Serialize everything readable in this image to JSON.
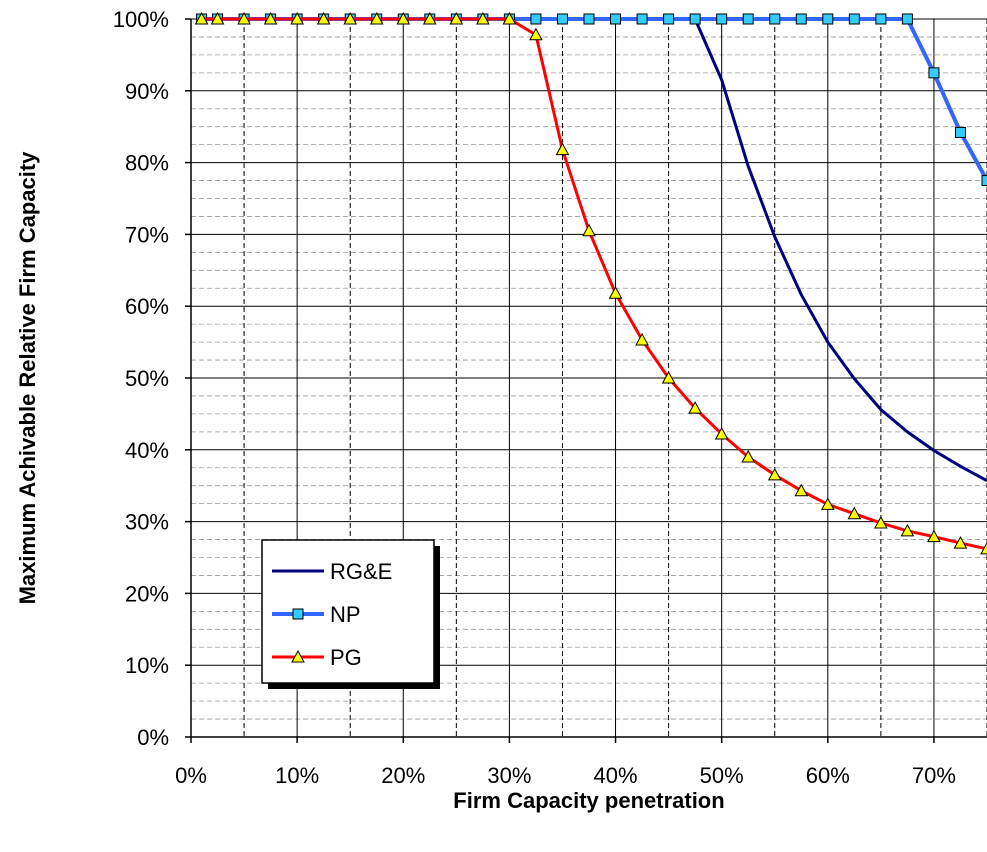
{
  "chart_data": {
    "type": "line",
    "title": "",
    "xlabel": "Firm Capacity penetration",
    "ylabel": "Maximum Achivable Relative Firm Capacity",
    "xlim": [
      0,
      75
    ],
    "ylim": [
      0,
      100
    ],
    "x_ticks": [
      {
        "v": 0,
        "label": "0%"
      },
      {
        "v": 10,
        "label": "10%"
      },
      {
        "v": 20,
        "label": "20%"
      },
      {
        "v": 30,
        "label": "30%"
      },
      {
        "v": 40,
        "label": "40%"
      },
      {
        "v": 50,
        "label": "50%"
      },
      {
        "v": 60,
        "label": "60%"
      },
      {
        "v": 70,
        "label": "70%"
      }
    ],
    "y_ticks": [
      {
        "v": 0,
        "label": "0%"
      },
      {
        "v": 10,
        "label": "10%"
      },
      {
        "v": 20,
        "label": "20%"
      },
      {
        "v": 30,
        "label": "30%"
      },
      {
        "v": 40,
        "label": "40%"
      },
      {
        "v": 50,
        "label": "50%"
      },
      {
        "v": 60,
        "label": "60%"
      },
      {
        "v": 70,
        "label": "70%"
      },
      {
        "v": 80,
        "label": "80%"
      },
      {
        "v": 90,
        "label": "90%"
      },
      {
        "v": 100,
        "label": "100%"
      }
    ],
    "grid": {
      "major": true,
      "minor": true
    },
    "legend_position": "bottom-left",
    "series": [
      {
        "name": "RG&E",
        "color": "#000080",
        "marker": "none",
        "x": [
          1,
          2.5,
          5,
          7.5,
          10,
          12.5,
          15,
          17.5,
          20,
          22.5,
          25,
          27.5,
          30,
          32.5,
          35,
          37.5,
          40,
          42.5,
          45,
          47.5,
          50,
          52.5,
          55,
          57.5,
          60,
          62.5,
          65,
          67.5,
          70,
          72.5,
          75
        ],
        "y": [
          100,
          100,
          100,
          100,
          100,
          100,
          100,
          100,
          100,
          100,
          100,
          100,
          100,
          100,
          100,
          100,
          100,
          100,
          100,
          100,
          91.5,
          79.5,
          69.7,
          61.6,
          55,
          49.9,
          45.6,
          42.5,
          39.9,
          37.7,
          35.7
        ]
      },
      {
        "name": "NP",
        "color": "#3366FF",
        "marker": "square",
        "marker_fill": "#33CCFF",
        "x": [
          1,
          2.5,
          5,
          7.5,
          10,
          12.5,
          15,
          17.5,
          20,
          22.5,
          25,
          27.5,
          30,
          32.5,
          35,
          37.5,
          40,
          42.5,
          45,
          47.5,
          50,
          52.5,
          55,
          57.5,
          60,
          62.5,
          65,
          67.5,
          70,
          72.5,
          75
        ],
        "y": [
          100,
          100,
          100,
          100,
          100,
          100,
          100,
          100,
          100,
          100,
          100,
          100,
          100,
          100,
          100,
          100,
          100,
          100,
          100,
          100,
          100,
          100,
          100,
          100,
          100,
          100,
          100,
          100,
          92.5,
          84.2,
          77.5
        ]
      },
      {
        "name": "PG",
        "color": "#FF0000",
        "marker": "triangle",
        "marker_fill": "#FFFF00",
        "x": [
          1,
          2.5,
          5,
          7.5,
          10,
          12.5,
          15,
          17.5,
          20,
          22.5,
          25,
          27.5,
          30,
          32.5,
          35,
          37.5,
          40,
          42.5,
          45,
          47.5,
          50,
          52.5,
          55,
          57.5,
          60,
          62.5,
          65,
          67.5,
          70,
          72.5,
          75
        ],
        "y": [
          100,
          100,
          100,
          100,
          100,
          100,
          100,
          100,
          100,
          100,
          100,
          100,
          100,
          97.8,
          81.8,
          70.5,
          61.8,
          55.3,
          50,
          45.8,
          42.2,
          39,
          36.5,
          34.3,
          32.4,
          31.1,
          29.8,
          28.7,
          27.9,
          27,
          26.2
        ]
      }
    ]
  }
}
